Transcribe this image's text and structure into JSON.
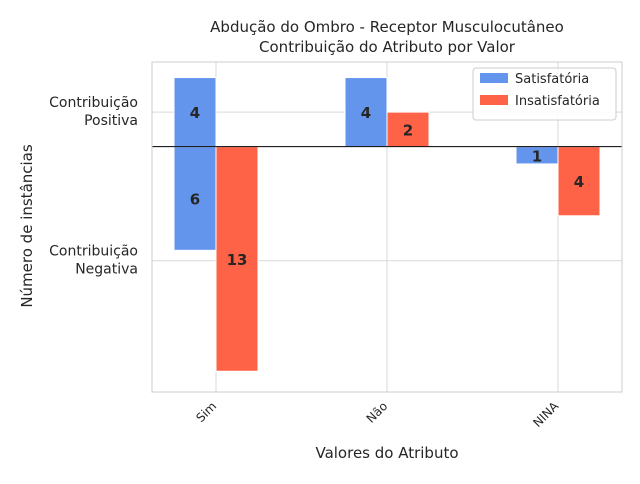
{
  "chart_data": {
    "type": "bar",
    "title": "Abdução do Ombro - Receptor Musculocutâneo",
    "subtitle": "Contribuição do Atributo por Valor",
    "xlabel": "Valores do Atributo",
    "ylabel": "Número de instâncias",
    "ytick_labels": [
      {
        "value": 2,
        "text": "Contribuição\nPositiva"
      },
      {
        "value": -6.6,
        "text": "Contribuição\nNegativa"
      }
    ],
    "categories": [
      "Sim",
      "Não",
      "NINA"
    ],
    "ylim": [
      -14.2,
      4.9
    ],
    "baseline": 0,
    "grid": true,
    "legend_position": "top-right",
    "series": [
      {
        "name": "Satisfatória",
        "color": "#6495ed",
        "positive": [
          4,
          4,
          0
        ],
        "negative": [
          6,
          0,
          1
        ]
      },
      {
        "name": "Insatisfatória",
        "color": "#ff6347",
        "positive": [
          0,
          2,
          0
        ],
        "negative": [
          13,
          0,
          4
        ]
      }
    ]
  }
}
